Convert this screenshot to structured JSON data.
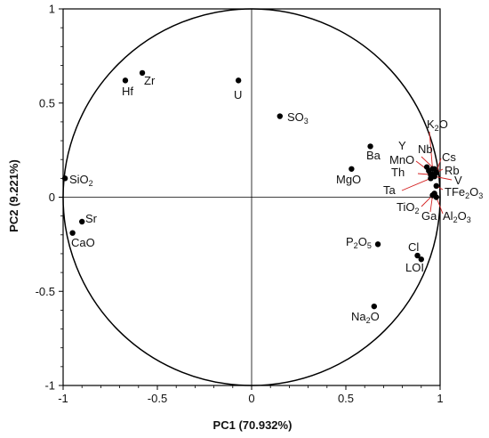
{
  "chart_data": {
    "type": "scatter",
    "title": "",
    "xlabel": "PC1 (70.932%)",
    "ylabel": "PC2 (9.221%)",
    "xlim": [
      -1,
      1
    ],
    "ylim": [
      -1,
      1
    ],
    "x_ticks": [
      "-1",
      "-0.5",
      "0",
      "0.5",
      "1"
    ],
    "y_ticks": [
      "1",
      "0.5",
      "0",
      "-0.5",
      "-1"
    ],
    "grid": false,
    "unit_circle": true,
    "point_color": "#000000",
    "leader_line_color": "#d42020",
    "points": [
      {
        "label": "SiO",
        "sub": "2",
        "x": -0.99,
        "y": 0.1
      },
      {
        "label": "Sr",
        "x": -0.9,
        "y": -0.13
      },
      {
        "label": "CaO",
        "x": -0.95,
        "y": -0.19
      },
      {
        "label": "Hf",
        "x": -0.67,
        "y": 0.62
      },
      {
        "label": "Zr",
        "x": -0.58,
        "y": 0.66
      },
      {
        "label": "U",
        "x": -0.07,
        "y": 0.62
      },
      {
        "label": "SO",
        "sub": "3",
        "x": 0.15,
        "y": 0.43
      },
      {
        "label": "Ba",
        "x": 0.63,
        "y": 0.27
      },
      {
        "label": "MgO",
        "x": 0.53,
        "y": 0.15
      },
      {
        "label": "P",
        "sub": "2",
        "label2": "O",
        "sub2": "5",
        "x": 0.67,
        "y": -0.25
      },
      {
        "label": "Cl",
        "x": 0.88,
        "y": -0.31
      },
      {
        "label": "LOI",
        "x": 0.9,
        "y": -0.33
      },
      {
        "label": "Na",
        "sub": "2",
        "label2": "O",
        "x": 0.65,
        "y": -0.58
      },
      {
        "label": "K",
        "sub": "2",
        "label2": "O",
        "x": 0.96,
        "y": 0.15
      },
      {
        "label": "Y",
        "x": 0.93,
        "y": 0.16
      },
      {
        "label": "Nb",
        "x": 0.97,
        "y": 0.15
      },
      {
        "label": "MnO",
        "x": 0.94,
        "y": 0.14
      },
      {
        "label": "Cs",
        "x": 0.98,
        "y": 0.13
      },
      {
        "label": "Rb",
        "x": 0.96,
        "y": 0.12
      },
      {
        "label": "Th",
        "x": 0.95,
        "y": 0.12
      },
      {
        "label": "V",
        "x": 0.97,
        "y": 0.11
      },
      {
        "label": "TFe",
        "sub": "2",
        "label2": "O",
        "sub2": "3",
        "x": 0.98,
        "y": 0.06
      },
      {
        "label": "Ta",
        "x": 0.95,
        "y": 0.1
      },
      {
        "label": "TiO",
        "sub": "2",
        "x": 0.97,
        "y": 0.02
      },
      {
        "label": "Ga",
        "x": 0.96,
        "y": 0.01
      },
      {
        "label": "Al",
        "sub": "2",
        "label2": "O",
        "sub2": "3",
        "x": 0.98,
        "y": 0.0
      }
    ]
  }
}
